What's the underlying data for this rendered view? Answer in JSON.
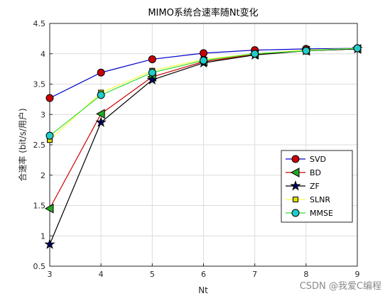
{
  "chart_data": {
    "type": "line",
    "title": "MIMO系统合速率随Nt变化",
    "xlabel": "Nt",
    "ylabel": "合速率 (bit/s/用户)",
    "xlim": [
      3,
      9
    ],
    "ylim": [
      0.5,
      4.5
    ],
    "xticks": [
      "3",
      "4",
      "5",
      "6",
      "7",
      "8",
      "9"
    ],
    "yticks": [
      "0.5",
      "1",
      "1.5",
      "2",
      "2.5",
      "3",
      "3.5",
      "4",
      "4.5"
    ],
    "grid": true,
    "legend_position": "right",
    "x": [
      3,
      4,
      5,
      6,
      7,
      8,
      9
    ],
    "series": [
      {
        "name": "SVD",
        "values": [
          3.27,
          3.69,
          3.91,
          4.01,
          4.06,
          4.08,
          4.09
        ],
        "line_color": "#0000cc",
        "marker": "circle",
        "marker_fill": "#cc0000"
      },
      {
        "name": "BD",
        "values": [
          1.45,
          3.01,
          3.62,
          3.87,
          3.99,
          4.05,
          4.08
        ],
        "line_color": "#cc0000",
        "marker": "triangle-left",
        "marker_fill": "#22aa22"
      },
      {
        "name": "ZF",
        "values": [
          0.86,
          2.87,
          3.57,
          3.85,
          3.98,
          4.05,
          4.08
        ],
        "line_color": "#000000",
        "marker": "star",
        "marker_fill": "#000066"
      },
      {
        "name": "SLNR",
        "values": [
          2.58,
          3.36,
          3.72,
          3.91,
          4.0,
          4.06,
          4.09
        ],
        "line_color": "#ffff44",
        "marker": "square",
        "marker_fill": "#dddd00"
      },
      {
        "name": "MMSE",
        "values": [
          2.65,
          3.32,
          3.69,
          3.89,
          4.0,
          4.05,
          4.09
        ],
        "line_color": "#33dd33",
        "marker": "circle",
        "marker_fill": "#22cccc"
      }
    ]
  },
  "watermark": "CSDN @我爱C编程"
}
